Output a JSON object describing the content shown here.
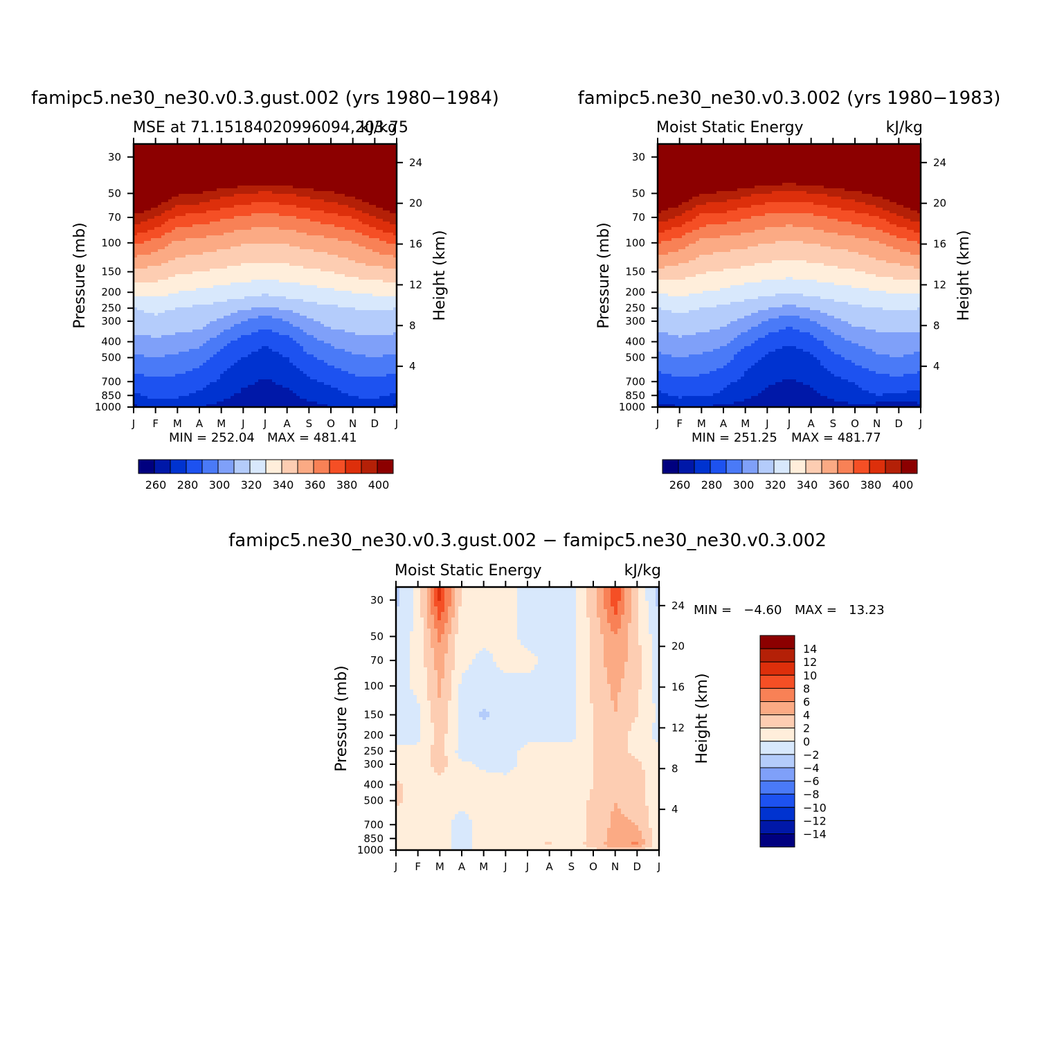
{
  "colors": [
    "#00007f",
    "#0018a8",
    "#0033d0",
    "#1d52f0",
    "#4a7af7",
    "#7fa0f9",
    "#b4ccfb",
    "#d8e8fc",
    "#ffeedb",
    "#fdcdb2",
    "#fbaa84",
    "#f88156",
    "#f54f25",
    "#dd2f0b",
    "#b42007",
    "#8c0000"
  ],
  "chart_data": [
    {
      "type": "heatmap",
      "title": "famipc5.ne30_ne30.v0.3.gust.002 (yrs 1980−1984)",
      "left_string": "MSE at 71.15184020996094,203.75",
      "right_string": "kJ/kg",
      "xlabel": "",
      "ylabel": "Pressure (mb)",
      "y2label": "Height (km)",
      "x_ticks": [
        "J",
        "F",
        "M",
        "A",
        "M",
        "J",
        "J",
        "A",
        "S",
        "O",
        "N",
        "D",
        "J"
      ],
      "y_ticks": [
        "30",
        "50",
        "70",
        "100",
        "150",
        "200",
        "250",
        "300",
        "400",
        "500",
        "700",
        "850",
        "1000"
      ],
      "y2_ticks": [
        "24",
        "20",
        "16",
        "12",
        "8",
        "4"
      ],
      "ylim": [
        1000,
        25
      ],
      "y_scale": "log",
      "min_label": "MIN = 252.04",
      "max_label": "MAX = 481.41",
      "colorbar_labels": [
        "260",
        "280",
        "300",
        "320",
        "340",
        "360",
        "380",
        "400"
      ],
      "contour_levels": [
        250,
        260,
        270,
        280,
        290,
        300,
        310,
        320,
        330,
        340,
        350,
        360,
        370,
        380,
        390,
        400
      ],
      "pressure_levels": [
        1000,
        925,
        850,
        700,
        500,
        400,
        300,
        250,
        200,
        150,
        100,
        70,
        50,
        30
      ],
      "values": [
        [
          258,
          262,
          262,
          260,
          256,
          253,
          252,
          254,
          256,
          260,
          262,
          262,
          258
        ],
        [
          264,
          268,
          267,
          264,
          260,
          256,
          255,
          256,
          260,
          262,
          267,
          268,
          264
        ],
        [
          268,
          273,
          272,
          268,
          263,
          258,
          256,
          258,
          262,
          266,
          271,
          272,
          268
        ],
        [
          276,
          278,
          277,
          274,
          268,
          262,
          259,
          262,
          268,
          272,
          277,
          278,
          276
        ],
        [
          288,
          290,
          288,
          284,
          276,
          270,
          265,
          270,
          278,
          284,
          288,
          290,
          288
        ],
        [
          296,
          298,
          296,
          294,
          284,
          276,
          272,
          276,
          286,
          292,
          296,
          297,
          296
        ],
        [
          306,
          308,
          306,
          304,
          298,
          290,
          284,
          290,
          298,
          304,
          306,
          307,
          306
        ],
        [
          310,
          312,
          310,
          308,
          306,
          302,
          298,
          302,
          306,
          308,
          310,
          311,
          310
        ],
        [
          322,
          324,
          320,
          318,
          316,
          314,
          312,
          314,
          316,
          318,
          320,
          322,
          322
        ],
        [
          338,
          336,
          332,
          330,
          328,
          326,
          325,
          326,
          328,
          330,
          334,
          336,
          338
        ],
        [
          362,
          356,
          348,
          346,
          344,
          341,
          340,
          341,
          344,
          346,
          350,
          356,
          362
        ],
        [
          388,
          380,
          368,
          366,
          362,
          358,
          356,
          358,
          362,
          366,
          370,
          380,
          388
        ],
        [
          410,
          404,
          392,
          390,
          384,
          380,
          378,
          380,
          384,
          388,
          394,
          402,
          410
        ],
        [
          460,
          456,
          440,
          436,
          432,
          430,
          428,
          430,
          432,
          438,
          444,
          454,
          460
        ]
      ]
    },
    {
      "type": "heatmap",
      "title": "famipc5.ne30_ne30.v0.3.002 (yrs 1980−1983)",
      "left_string": "Moist Static Energy",
      "right_string": "kJ/kg",
      "xlabel": "",
      "ylabel": "Pressure (mb)",
      "y2label": "Height (km)",
      "x_ticks": [
        "J",
        "F",
        "M",
        "A",
        "M",
        "J",
        "J",
        "A",
        "S",
        "O",
        "N",
        "D",
        "J"
      ],
      "y_ticks": [
        "30",
        "50",
        "70",
        "100",
        "150",
        "200",
        "250",
        "300",
        "400",
        "500",
        "700",
        "850",
        "1000"
      ],
      "y2_ticks": [
        "24",
        "20",
        "16",
        "12",
        "8",
        "4"
      ],
      "ylim": [
        1000,
        25
      ],
      "y_scale": "log",
      "min_label": "MIN = 251.25",
      "max_label": "MAX = 481.77",
      "colorbar_labels": [
        "260",
        "280",
        "300",
        "320",
        "340",
        "360",
        "380",
        "400"
      ],
      "contour_levels": [
        250,
        260,
        270,
        280,
        290,
        300,
        310,
        320,
        330,
        340,
        350,
        360,
        370,
        380,
        390,
        400
      ],
      "pressure_levels": [
        1000,
        925,
        850,
        700,
        500,
        400,
        300,
        250,
        200,
        150,
        100,
        70,
        50,
        30
      ],
      "values": [
        [
          256,
          259,
          259,
          258,
          255,
          252,
          252,
          253,
          255,
          257,
          254,
          252,
          256
        ],
        [
          262,
          266,
          266,
          263,
          259,
          256,
          255,
          256,
          259,
          262,
          262,
          260,
          262
        ],
        [
          267,
          272,
          271,
          268,
          262,
          258,
          256,
          258,
          262,
          266,
          270,
          268,
          267
        ],
        [
          275,
          278,
          277,
          273,
          267,
          261,
          259,
          261,
          267,
          271,
          276,
          277,
          275
        ],
        [
          287,
          290,
          288,
          284,
          275,
          268,
          265,
          268,
          277,
          283,
          288,
          290,
          287
        ],
        [
          295,
          298,
          296,
          293,
          283,
          275,
          271,
          275,
          285,
          291,
          295,
          296,
          295
        ],
        [
          305,
          307,
          305,
          303,
          297,
          289,
          283,
          289,
          297,
          303,
          305,
          306,
          305
        ],
        [
          310,
          312,
          310,
          308,
          305,
          301,
          297,
          301,
          305,
          308,
          310,
          311,
          310
        ],
        [
          321,
          323,
          320,
          318,
          315,
          313,
          311,
          313,
          315,
          317,
          319,
          321,
          321
        ],
        [
          337,
          335,
          331,
          329,
          327,
          325,
          324,
          325,
          327,
          329,
          333,
          335,
          337
        ],
        [
          360,
          355,
          347,
          345,
          343,
          340,
          339,
          340,
          343,
          345,
          349,
          355,
          360
        ],
        [
          386,
          378,
          367,
          365,
          361,
          357,
          355,
          357,
          361,
          365,
          369,
          378,
          386
        ],
        [
          408,
          402,
          390,
          388,
          383,
          379,
          377,
          379,
          383,
          387,
          393,
          400,
          408
        ],
        [
          458,
          454,
          438,
          434,
          430,
          428,
          426,
          428,
          430,
          436,
          442,
          452,
          458
        ]
      ]
    },
    {
      "type": "heatmap",
      "title": "famipc5.ne30_ne30.v0.3.gust.002 − famipc5.ne30_ne30.v0.3.002",
      "left_string": "Moist Static Energy",
      "right_string": "kJ/kg",
      "xlabel": "",
      "ylabel": "Pressure (mb)",
      "y2label": "Height (km)",
      "x_ticks": [
        "J",
        "F",
        "M",
        "A",
        "M",
        "J",
        "J",
        "A",
        "S",
        "O",
        "N",
        "D",
        "J"
      ],
      "y_ticks": [
        "30",
        "50",
        "70",
        "100",
        "150",
        "200",
        "250",
        "300",
        "400",
        "500",
        "700",
        "850",
        "1000"
      ],
      "y2_ticks": [
        "24",
        "20",
        "16",
        "12",
        "8",
        "4"
      ],
      "ylim": [
        1000,
        25
      ],
      "y_scale": "log",
      "min_label": "MIN =   −4.60",
      "max_label": "MAX =   13.23",
      "colorbar_labels": [
        "14",
        "12",
        "10",
        "8",
        "6",
        "4",
        "2",
        "0",
        "−2",
        "−4",
        "−6",
        "−8",
        "−10",
        "−12",
        "−14"
      ],
      "contour_levels": [
        -14,
        -12,
        -10,
        -8,
        -6,
        -4,
        -2,
        0,
        2,
        4,
        6,
        8,
        10,
        12,
        14
      ],
      "pressure_levels": [
        1000,
        925,
        850,
        700,
        500,
        400,
        300,
        250,
        200,
        150,
        100,
        70,
        50,
        30
      ],
      "values": [
        [
          0.5,
          0.5,
          0.5,
          -0.5,
          0.5,
          0.5,
          0.5,
          0.5,
          0.5,
          1.5,
          2.5,
          1.5,
          0.5
        ],
        [
          0.5,
          1.0,
          1.0,
          -1.0,
          1.0,
          1.0,
          1.5,
          2.5,
          1.5,
          2.5,
          5.5,
          6.5,
          0.5
        ],
        [
          0.5,
          1.0,
          1.0,
          -1.0,
          1.0,
          1.0,
          1.0,
          1.0,
          0.5,
          2.5,
          5.0,
          5.5,
          0.5
        ],
        [
          0.5,
          1.0,
          1.0,
          -1.0,
          1.0,
          1.0,
          1.0,
          1.0,
          0.5,
          2.5,
          4.5,
          4.0,
          0.5
        ],
        [
          2.5,
          1.0,
          1.0,
          0.5,
          1.0,
          1.0,
          1.0,
          1.0,
          0.5,
          2.5,
          4.0,
          3.0,
          0.5
        ],
        [
          2.5,
          1.0,
          1.0,
          0.5,
          1.0,
          0.5,
          0.5,
          1.0,
          0.5,
          2.0,
          4.0,
          3.0,
          0.5
        ],
        [
          0.5,
          0.5,
          3.0,
          0.5,
          -0.5,
          -0.5,
          0.5,
          0.5,
          1.5,
          2.0,
          4.0,
          2.5,
          0.5
        ],
        [
          0.5,
          0.5,
          3.0,
          -1.0,
          -0.5,
          -0.5,
          0.5,
          0.5,
          0.5,
          2.0,
          3.0,
          1.0,
          0.5
        ],
        [
          -1.0,
          -0.5,
          3.0,
          -0.5,
          -0.5,
          -1.0,
          -0.5,
          -0.5,
          -0.5,
          2.0,
          3.5,
          1.0,
          -0.5
        ],
        [
          -1.0,
          -0.5,
          3.5,
          -0.5,
          -2.5,
          -0.5,
          -0.5,
          -0.5,
          -0.5,
          2.0,
          4.0,
          2.0,
          -0.5
        ],
        [
          -1.0,
          0.5,
          4.5,
          -0.5,
          -0.5,
          -0.5,
          -0.5,
          -0.5,
          -0.5,
          2.5,
          4.5,
          2.5,
          -1.0
        ],
        [
          -1.0,
          0.5,
          5.0,
          0.5,
          -0.5,
          0.5,
          0.5,
          -0.5,
          -0.5,
          2.5,
          5.5,
          2.5,
          -1.0
        ],
        [
          -1.0,
          0.5,
          6.5,
          0.5,
          0.5,
          0.5,
          -0.5,
          -0.5,
          -0.5,
          2.5,
          6.0,
          2.5,
          -1.5
        ],
        [
          -2.5,
          0.5,
          10.5,
          1.5,
          0.5,
          0.5,
          -0.5,
          -0.5,
          -0.5,
          3.0,
          9.5,
          2.0,
          -2.5
        ]
      ]
    }
  ]
}
